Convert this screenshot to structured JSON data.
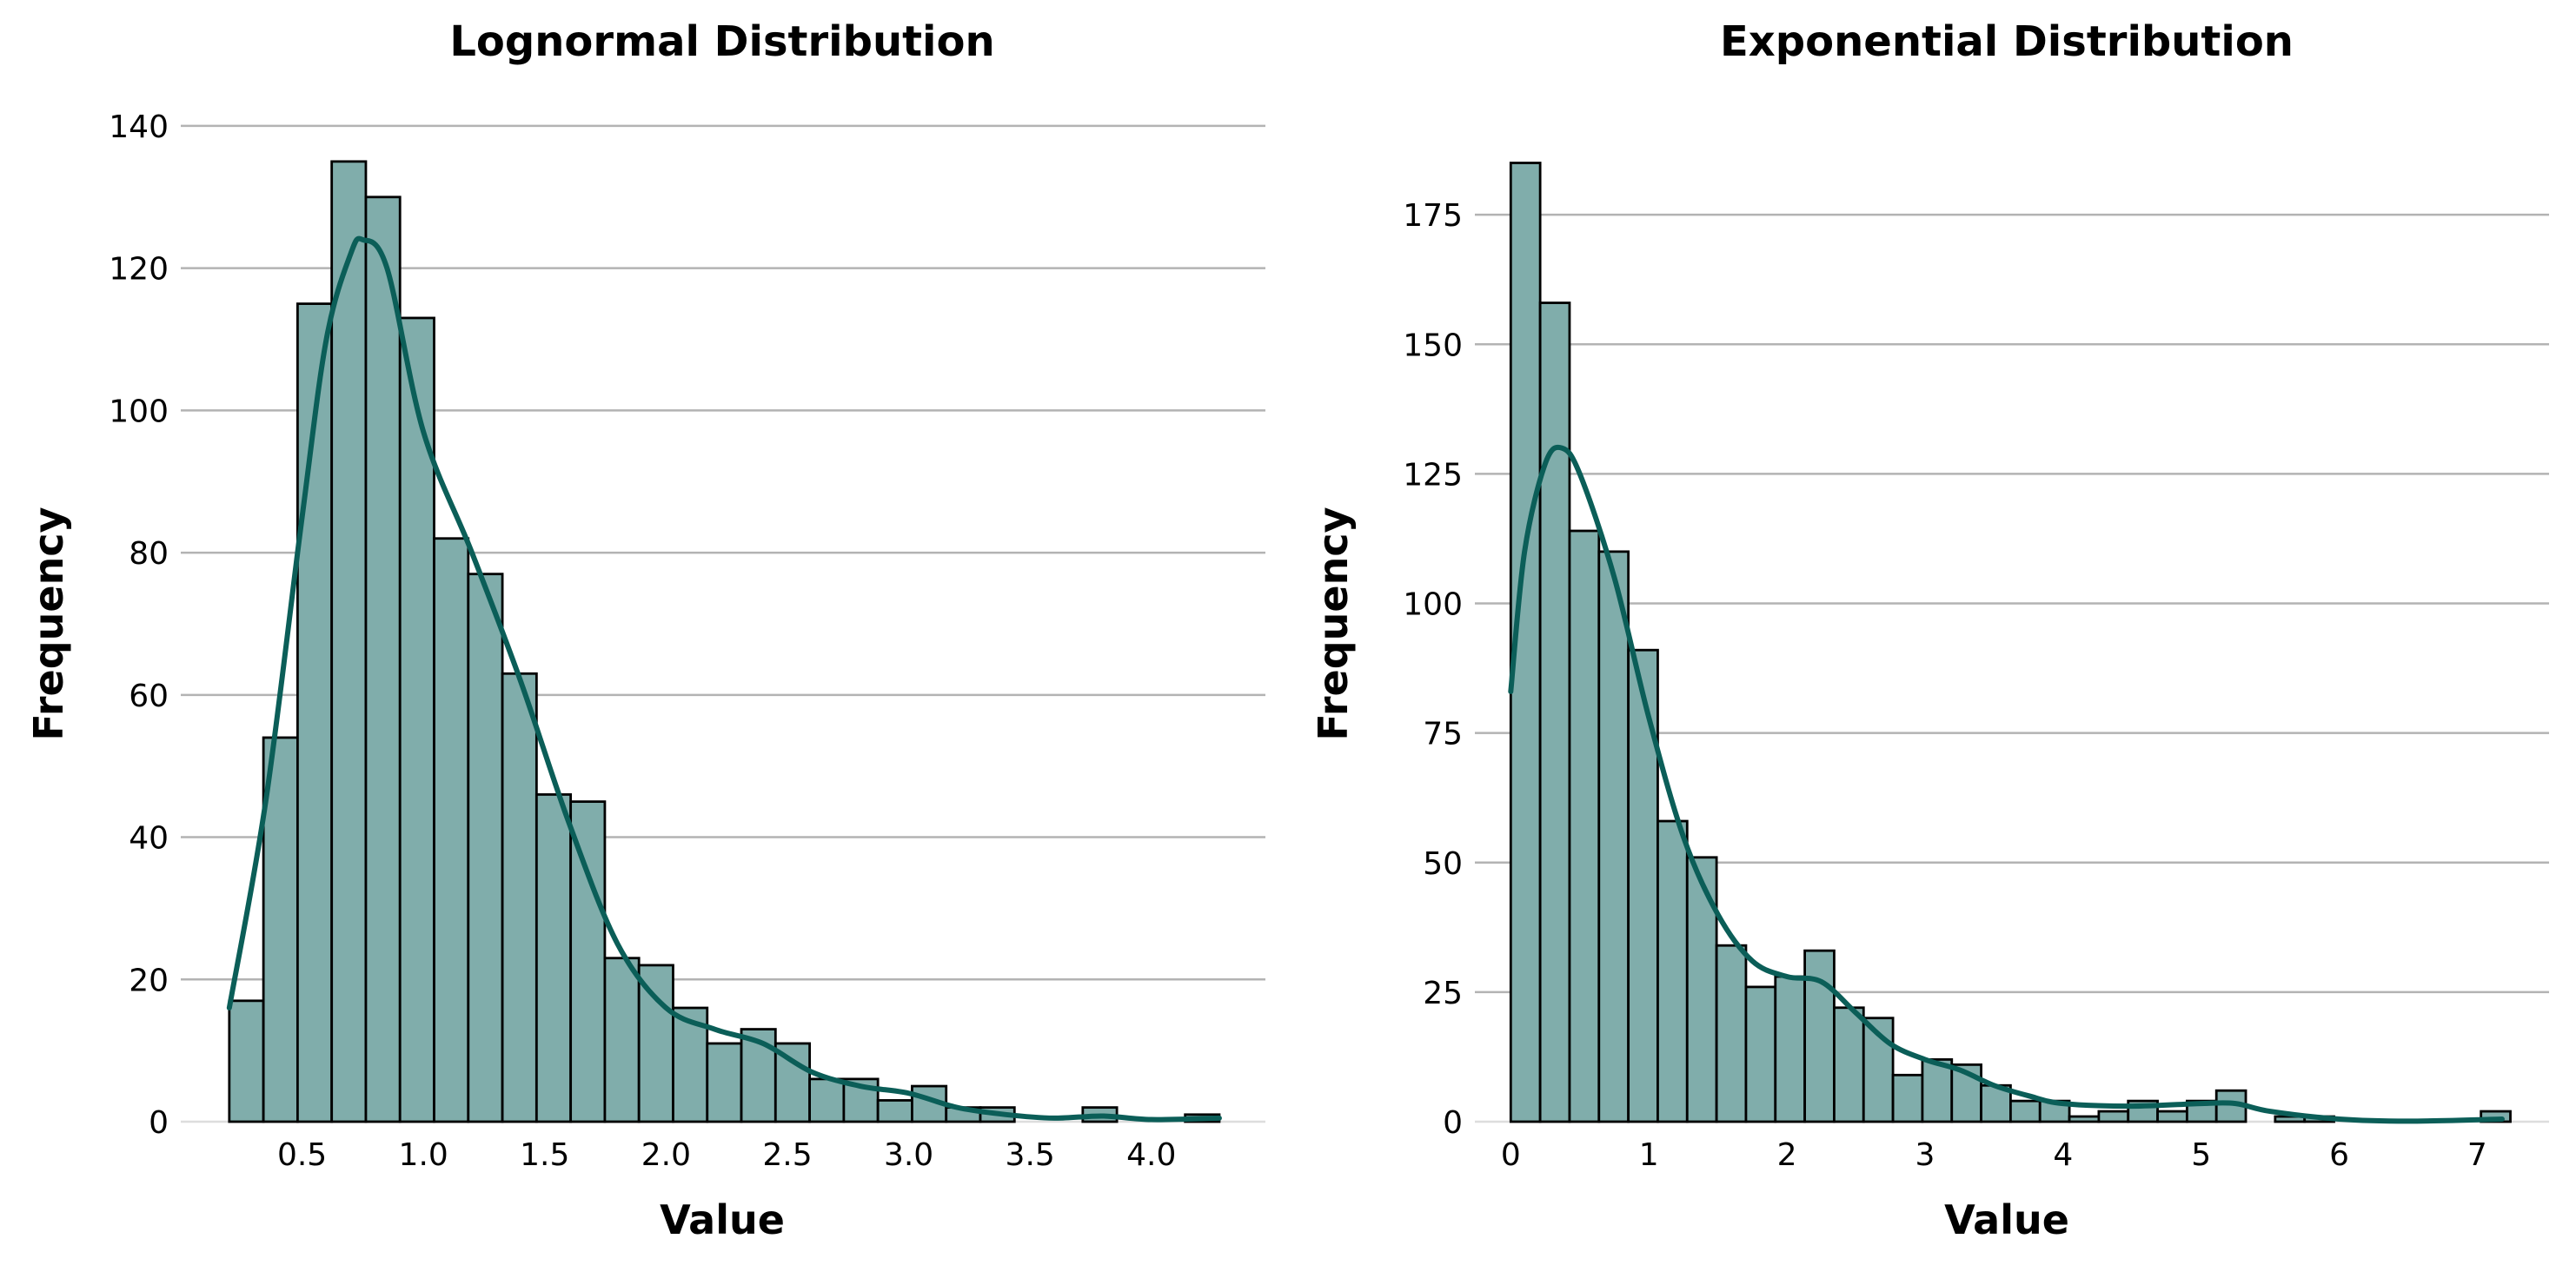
{
  "colors": {
    "bar_fill": "#80adab",
    "bar_edge": "#000000",
    "kde_line": "#0b5e58",
    "grid": "#b3b3b3"
  },
  "chart_data": [
    {
      "type": "bar",
      "subtype": "histogram",
      "title": "Lognormal Distribution",
      "xlabel": "Value",
      "ylabel": "Frequency",
      "xlim": [
        0.0,
        4.47
      ],
      "ylim": [
        0,
        145
      ],
      "grid": "horizontal",
      "bin_start": 0.2,
      "bin_end": 4.28,
      "counts": [
        17,
        54,
        115,
        135,
        130,
        113,
        82,
        77,
        63,
        46,
        45,
        23,
        22,
        16,
        11,
        13,
        11,
        6,
        6,
        3,
        5,
        2,
        2,
        0,
        0,
        2,
        0,
        0,
        1
      ],
      "xticks": [
        "0.5",
        "1.0",
        "1.5",
        "2.0",
        "2.5",
        "3.0",
        "3.5",
        "4.0"
      ],
      "yticks": [
        "0",
        "20",
        "40",
        "60",
        "80",
        "100",
        "120",
        "140"
      ],
      "kde": {
        "x": [
          0.2,
          0.35,
          0.5,
          0.6,
          0.7,
          0.75,
          0.85,
          1.0,
          1.2,
          1.4,
          1.6,
          1.8,
          2.0,
          2.2,
          2.4,
          2.6,
          2.8,
          3.0,
          3.2,
          3.4,
          3.6,
          3.8,
          4.0,
          4.28
        ],
        "y": [
          16,
          45,
          85,
          110,
          122,
          124,
          120,
          97,
          80,
          62,
          42,
          25,
          16,
          13,
          11,
          7,
          5,
          4,
          2,
          1,
          0.5,
          0.8,
          0.3,
          0.5
        ]
      }
    },
    {
      "type": "bar",
      "subtype": "histogram",
      "title": "Exponential Distribution",
      "xlabel": "Value",
      "ylabel": "Frequency",
      "xlim": [
        -0.26,
        7.52
      ],
      "ylim": [
        0,
        199
      ],
      "grid": "horizontal",
      "bin_start": 0.0,
      "bin_end": 7.24,
      "counts": [
        185,
        158,
        114,
        110,
        91,
        58,
        51,
        34,
        26,
        28,
        33,
        22,
        20,
        9,
        12,
        11,
        7,
        4,
        4,
        1,
        2,
        4,
        2,
        4,
        6,
        0,
        1,
        1,
        0,
        0,
        0,
        0,
        0,
        2
      ],
      "xticks": [
        "0",
        "1",
        "2",
        "3",
        "4",
        "5",
        "6",
        "7"
      ],
      "yticks": [
        "0",
        "25",
        "50",
        "75",
        "100",
        "125",
        "150",
        "175"
      ],
      "kde": {
        "x": [
          0,
          0.1,
          0.25,
          0.37,
          0.5,
          0.75,
          1.0,
          1.25,
          1.5,
          1.75,
          2.0,
          2.25,
          2.5,
          2.75,
          3.0,
          3.25,
          3.5,
          3.75,
          4.0,
          4.5,
          5.0,
          5.25,
          5.5,
          6.0,
          6.5,
          7.18
        ],
        "y": [
          83,
          110,
          127,
          130,
          125,
          105,
          78,
          55,
          40,
          31,
          28,
          27,
          21,
          15,
          12,
          10,
          7,
          5,
          3.5,
          3,
          3.5,
          3.5,
          2,
          0.5,
          0.1,
          0.5
        ]
      }
    }
  ]
}
